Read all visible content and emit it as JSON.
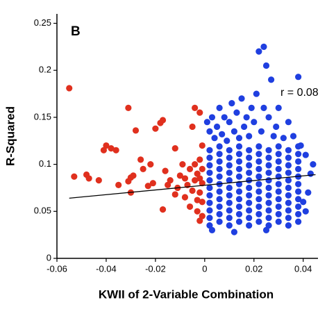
{
  "chart_data": {
    "type": "scatter",
    "panel_label": "B",
    "annotation": "r = 0.08",
    "x_label": "KWII of 2-Variable Combination",
    "y_label": "R-Squared",
    "xlim": [
      -0.06,
      0.046
    ],
    "ylim": [
      0,
      0.26
    ],
    "xticks": [
      -0.06,
      -0.04,
      -0.02,
      0,
      0.02,
      0.04
    ],
    "yticks": [
      0,
      0.05,
      0.1,
      0.15,
      0.2,
      0.25
    ],
    "trendline": {
      "color": "#000000",
      "x": [
        -0.055,
        0.045
      ],
      "y": [
        0.064,
        0.089
      ]
    },
    "series": [
      {
        "color": "#e0301e",
        "x": [
          -0.055,
          -0.053,
          -0.048,
          -0.047,
          -0.043,
          -0.041,
          -0.04,
          -0.038,
          -0.036,
          -0.035,
          -0.031,
          -0.031,
          -0.03,
          -0.029,
          -0.03,
          -0.028,
          -0.026,
          -0.025,
          -0.023,
          -0.022,
          -0.021,
          -0.02,
          -0.018,
          -0.017,
          -0.016,
          -0.017,
          -0.015,
          -0.014,
          -0.012,
          -0.012,
          -0.011,
          -0.01,
          -0.009,
          -0.008,
          -0.008,
          -0.007,
          -0.006,
          -0.006,
          -0.005,
          -0.005,
          -0.004,
          -0.004,
          -0.003,
          -0.003,
          -0.002,
          -0.002,
          -0.002,
          -0.001,
          -0.001,
          -0.001,
          -0.001,
          -0.001,
          -0.002,
          -0.003,
          -0.002,
          -0.004
        ],
        "values": [
          0.181,
          0.087,
          0.089,
          0.085,
          0.083,
          0.115,
          0.12,
          0.117,
          0.115,
          0.078,
          0.16,
          0.082,
          0.086,
          0.088,
          0.07,
          0.136,
          0.105,
          0.095,
          0.077,
          0.1,
          0.08,
          0.138,
          0.144,
          0.147,
          0.093,
          0.052,
          0.078,
          0.083,
          0.117,
          0.068,
          0.075,
          0.088,
          0.1,
          0.085,
          0.065,
          0.078,
          0.095,
          0.055,
          0.14,
          0.072,
          0.16,
          0.083,
          0.062,
          0.09,
          0.155,
          0.105,
          0.07,
          0.12,
          0.095,
          0.08,
          0.06,
          0.045,
          0.04,
          0.05,
          0.085,
          0.1
        ]
      },
      {
        "color": "#1f3fe0",
        "x": [
          0.002,
          0.002,
          0.002,
          0.002,
          0.002,
          0.002,
          0.002,
          0.002,
          0.002,
          0.002,
          0.002,
          0.006,
          0.006,
          0.006,
          0.006,
          0.006,
          0.006,
          0.006,
          0.006,
          0.006,
          0.006,
          0.006,
          0.01,
          0.01,
          0.01,
          0.01,
          0.01,
          0.01,
          0.01,
          0.01,
          0.01,
          0.01,
          0.01,
          0.014,
          0.014,
          0.014,
          0.014,
          0.014,
          0.014,
          0.014,
          0.014,
          0.014,
          0.014,
          0.014,
          0.018,
          0.018,
          0.018,
          0.018,
          0.018,
          0.018,
          0.018,
          0.018,
          0.018,
          0.018,
          0.018,
          0.022,
          0.022,
          0.022,
          0.022,
          0.022,
          0.022,
          0.022,
          0.022,
          0.022,
          0.022,
          0.022,
          0.026,
          0.026,
          0.026,
          0.026,
          0.026,
          0.026,
          0.026,
          0.026,
          0.026,
          0.026,
          0.026,
          0.03,
          0.03,
          0.03,
          0.03,
          0.03,
          0.03,
          0.03,
          0.03,
          0.03,
          0.03,
          0.03,
          0.034,
          0.034,
          0.034,
          0.034,
          0.034,
          0.034,
          0.034,
          0.034,
          0.034,
          0.034,
          0.034,
          0.038,
          0.038,
          0.038,
          0.038,
          0.038,
          0.038,
          0.038,
          0.038,
          0.038,
          0.038,
          0.038,
          0.001,
          0.002,
          0.003,
          0.004,
          0.005,
          0.006,
          0.007,
          0.008,
          0.009,
          0.01,
          0.011,
          0.012,
          0.013,
          0.014,
          0.015,
          0.016,
          0.017,
          0.018,
          0.019,
          0.02,
          0.021,
          0.022,
          0.023,
          0.024,
          0.024,
          0.025,
          0.026,
          0.027,
          0.028,
          0.029,
          0.03,
          0.032,
          0.034,
          0.036,
          0.038,
          0.039,
          0.041,
          0.043,
          0.044,
          0.04,
          0.042,
          0.041,
          0.003,
          0.012,
          0.025
        ],
        "values": [
          0.035,
          0.043,
          0.051,
          0.059,
          0.067,
          0.075,
          0.083,
          0.091,
          0.099,
          0.107,
          0.115,
          0.039,
          0.047,
          0.055,
          0.063,
          0.071,
          0.079,
          0.087,
          0.095,
          0.103,
          0.111,
          0.119,
          0.035,
          0.043,
          0.051,
          0.059,
          0.067,
          0.075,
          0.083,
          0.091,
          0.099,
          0.107,
          0.115,
          0.039,
          0.047,
          0.055,
          0.063,
          0.071,
          0.079,
          0.087,
          0.095,
          0.103,
          0.111,
          0.119,
          0.035,
          0.043,
          0.051,
          0.059,
          0.067,
          0.075,
          0.083,
          0.091,
          0.099,
          0.107,
          0.115,
          0.039,
          0.047,
          0.055,
          0.063,
          0.071,
          0.079,
          0.087,
          0.095,
          0.103,
          0.111,
          0.119,
          0.035,
          0.043,
          0.051,
          0.059,
          0.067,
          0.075,
          0.083,
          0.091,
          0.099,
          0.107,
          0.115,
          0.039,
          0.047,
          0.055,
          0.063,
          0.071,
          0.079,
          0.087,
          0.095,
          0.103,
          0.111,
          0.119,
          0.035,
          0.043,
          0.051,
          0.059,
          0.067,
          0.075,
          0.083,
          0.091,
          0.099,
          0.107,
          0.115,
          0.039,
          0.047,
          0.055,
          0.063,
          0.071,
          0.079,
          0.087,
          0.095,
          0.103,
          0.111,
          0.119,
          0.145,
          0.135,
          0.15,
          0.128,
          0.14,
          0.16,
          0.132,
          0.15,
          0.125,
          0.145,
          0.165,
          0.135,
          0.155,
          0.128,
          0.17,
          0.14,
          0.15,
          0.13,
          0.16,
          0.145,
          0.175,
          0.22,
          0.135,
          0.225,
          0.16,
          0.205,
          0.15,
          0.19,
          0.13,
          0.14,
          0.16,
          0.128,
          0.145,
          0.13,
          0.193,
          0.12,
          0.11,
          0.09,
          0.1,
          0.06,
          0.07,
          0.05,
          0.03,
          0.028,
          0.03
        ]
      }
    ]
  }
}
